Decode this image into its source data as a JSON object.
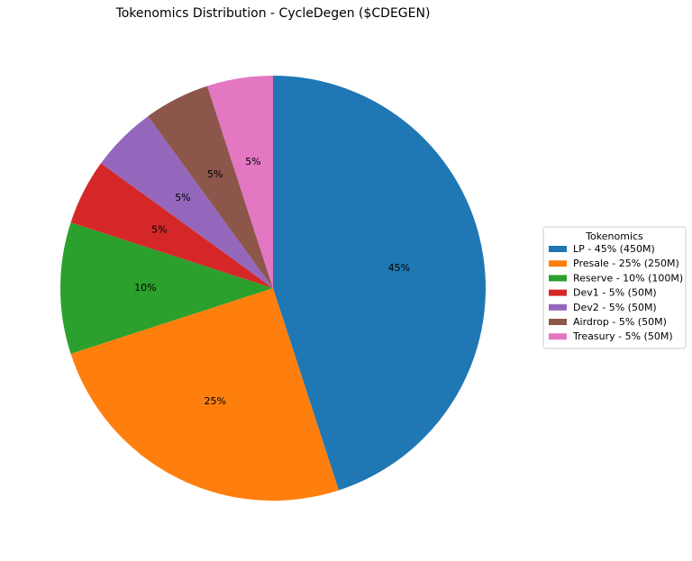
{
  "chart_data": {
    "type": "pie",
    "title": "Tokenomics Distribution - CycleDegen ($CDEGEN)",
    "start_angle_deg": 90,
    "direction": "clockwise",
    "slices": [
      {
        "label": "LP - 45% (450M)",
        "value": 45,
        "pct_label": "45%",
        "color": "#1f77b4"
      },
      {
        "label": "Presale - 25% (250M)",
        "value": 25,
        "pct_label": "25%",
        "color": "#ff7f0e"
      },
      {
        "label": "Reserve - 10% (100M)",
        "value": 10,
        "pct_label": "10%",
        "color": "#2ca02c"
      },
      {
        "label": "Dev1 - 5% (50M)",
        "value": 5,
        "pct_label": "5%",
        "color": "#d62728"
      },
      {
        "label": "Dev2 - 5% (50M)",
        "value": 5,
        "pct_label": "5%",
        "color": "#9467bd"
      },
      {
        "label": "Airdrop - 5% (50M)",
        "value": 5,
        "pct_label": "5%",
        "color": "#8c564b"
      },
      {
        "label": "Treasury - 5% (50M)",
        "value": 5,
        "pct_label": "5%",
        "color": "#e377c2"
      }
    ],
    "legend": {
      "title": "Tokenomics",
      "placement": "right"
    }
  }
}
